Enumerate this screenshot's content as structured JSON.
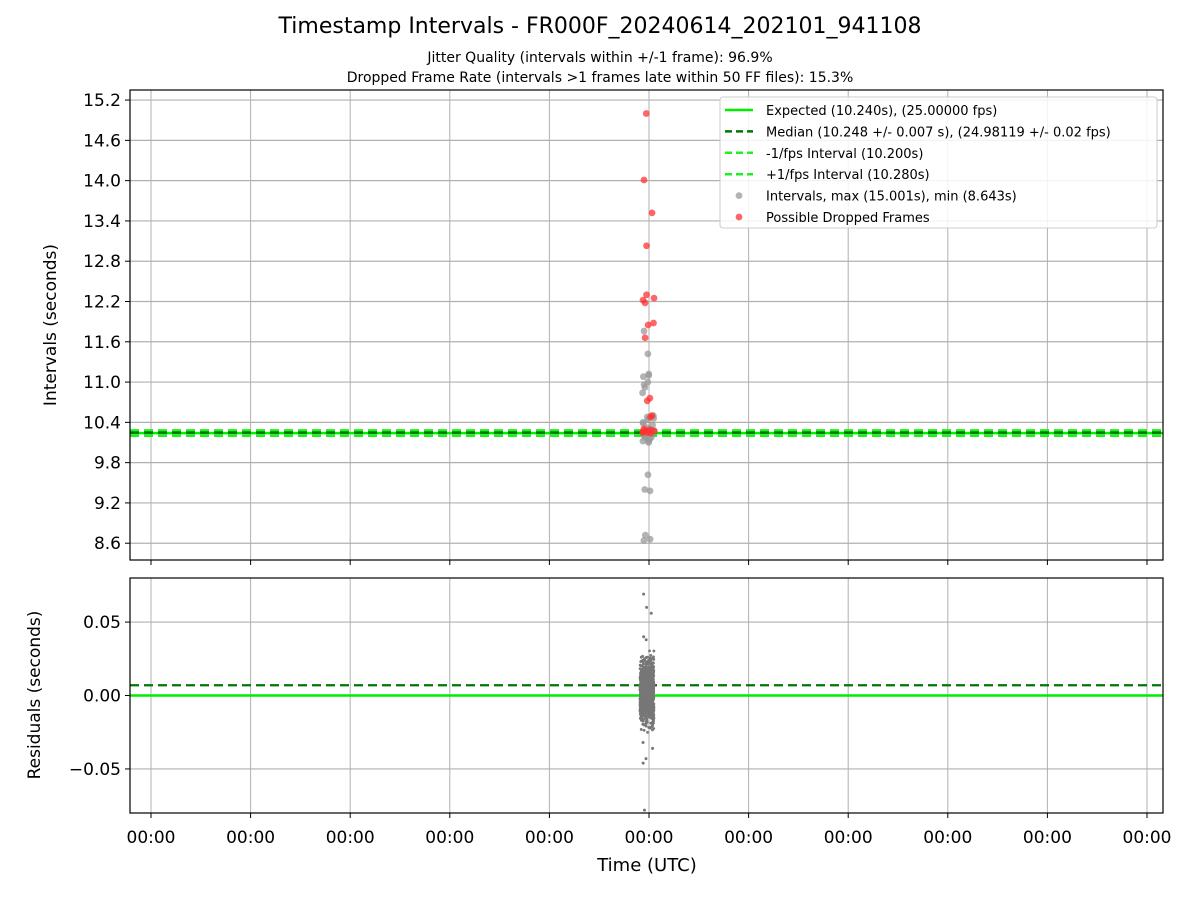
{
  "title": "Timestamp Intervals - FR000F_20240614_202101_941108",
  "subtitle_jitter": "Jitter Quality (intervals within +/-1 frame): 96.9%",
  "subtitle_dropped": "Dropped Frame Rate (intervals >1 frames late within 50 FF files): 15.3%",
  "colors": {
    "expected": "#00ee00",
    "median": "#007700",
    "fps_band": "#22ee22",
    "interval_points": "#999999",
    "dropped_points": "#ff3333",
    "residual_points": "#777777",
    "grid": "#b0b0b0"
  },
  "chart_data": [
    {
      "type": "scatter",
      "ylabel": "Intervals (seconds)",
      "xlabel": "",
      "ylim": [
        8.35,
        15.35
      ],
      "yticks": [
        "8.6",
        "9.2",
        "9.8",
        "10.4",
        "11.0",
        "11.6",
        "12.2",
        "12.8",
        "13.4",
        "14.0",
        "14.6",
        "15.2"
      ],
      "grid": true,
      "legend_position": "upper-right",
      "legend": [
        "Expected (10.240s), (25.00000 fps)",
        "Median (10.248 +/- 0.007 s), (24.98119 +/- 0.02 fps)",
        "-1/fps Interval (10.200s)",
        "+1/fps Interval (10.280s)",
        "Intervals, max (15.001s), min (8.643s)",
        "Possible Dropped Frames"
      ],
      "reference_lines": {
        "expected": 10.24,
        "median": 10.248,
        "minus_one_fps": 10.2,
        "plus_one_fps": 10.28
      },
      "series": [
        {
          "name": "Intervals, max (15.001s), min (8.643s)",
          "y": [
            11.42,
            11.1,
            11.08,
            10.92,
            10.48,
            10.44,
            10.4,
            10.36,
            10.3,
            10.26,
            10.22,
            10.18,
            10.15,
            10.12,
            9.62,
            9.4,
            8.66,
            8.64,
            11.12,
            11.0,
            10.96,
            10.84,
            10.5,
            10.46,
            10.38,
            10.32,
            10.28,
            10.2,
            10.16,
            10.1,
            9.38,
            8.72,
            11.76,
            10.26,
            10.22,
            10.18,
            10.12
          ]
        },
        {
          "name": "Possible Dropped Frames",
          "y": [
            15.0,
            14.01,
            13.52,
            13.03,
            12.3,
            12.22,
            12.25,
            12.18,
            11.88,
            11.85,
            11.66,
            10.76,
            10.72,
            10.5,
            10.48,
            10.3,
            10.28,
            10.27,
            10.26,
            10.25,
            10.25,
            10.24,
            10.29,
            10.27
          ]
        }
      ]
    },
    {
      "type": "scatter",
      "ylabel": "Residuals (seconds)",
      "xlabel": "Time (UTC)",
      "ylim": [
        -0.08,
        0.08
      ],
      "yticks": [
        "−0.05",
        "0.00",
        "0.05"
      ],
      "xticks": [
        "00:00",
        "00:00",
        "00:00",
        "00:00",
        "00:00",
        "00:00",
        "00:00",
        "00:00",
        "00:00",
        "00:00",
        "00:00"
      ],
      "grid": true,
      "reference_lines": {
        "expected": 0.0,
        "median": 0.007
      },
      "residual_outliers": [
        0.069,
        0.06,
        0.056,
        0.04,
        0.038,
        -0.032,
        -0.036,
        -0.043,
        -0.046,
        -0.078
      ],
      "residual_spread": [
        -0.028,
        0.034
      ]
    }
  ]
}
